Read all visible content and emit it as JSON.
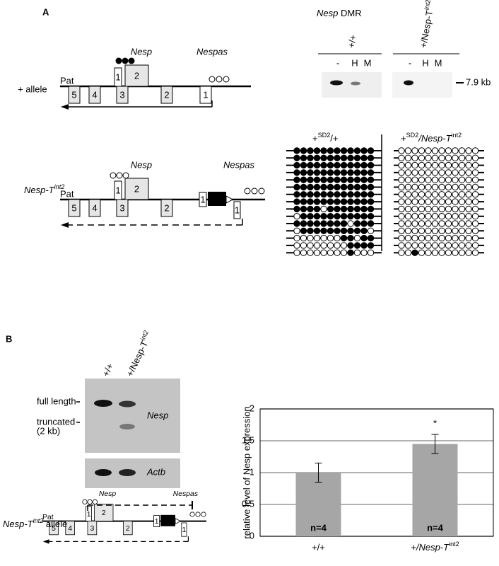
{
  "panel_labels": [
    "A",
    "B"
  ],
  "dmr_assay": {
    "gene": "Nesp",
    "suffix": "DMR",
    "genotypes": [
      "+/+",
      "+/Nesp-T"
    ],
    "genotype_superscripts": [
      null,
      "int2"
    ],
    "lanes": [
      "-",
      "H",
      "M",
      "-",
      "H",
      "M"
    ],
    "size_marker": "7.9 kb"
  },
  "plus_allele": {
    "label": "+ allele",
    "parent": "Pat",
    "genes": [
      "Nesp",
      "Nespas"
    ],
    "exons": [
      "1",
      "2",
      "5",
      "4",
      "3",
      "2",
      "1"
    ]
  },
  "mutant_allele": {
    "label": "Nesp-T",
    "label_superscript": "int2",
    "parent": "Pat",
    "genes": [
      "Nesp",
      "Nespas"
    ],
    "polya": "pA",
    "exons": [
      "1",
      "2",
      "5",
      "4",
      "3",
      "2",
      "1",
      "1"
    ]
  },
  "bisulfite": [
    {
      "title": [
        "+",
        "SD2",
        "/+"
      ],
      "methylation": [
        [
          1,
          1,
          1,
          1,
          1,
          1,
          1,
          1,
          1,
          1,
          1,
          1
        ],
        [
          1,
          1,
          1,
          1,
          1,
          1,
          1,
          1,
          1,
          1,
          1,
          1
        ],
        [
          1,
          1,
          1,
          1,
          1,
          1,
          1,
          1,
          1,
          1,
          1,
          1
        ],
        [
          1,
          1,
          1,
          1,
          1,
          1,
          1,
          1,
          1,
          1,
          1,
          1
        ],
        [
          1,
          1,
          1,
          1,
          1,
          1,
          1,
          1,
          1,
          1,
          1,
          1
        ],
        [
          1,
          1,
          1,
          1,
          1,
          1,
          1,
          1,
          1,
          1,
          1,
          1
        ],
        [
          1,
          1,
          1,
          1,
          1,
          1,
          1,
          1,
          1,
          1,
          1,
          1
        ],
        [
          1,
          1,
          1,
          1,
          1,
          1,
          1,
          1,
          1,
          1,
          1,
          1
        ],
        [
          1,
          1,
          1,
          1,
          0,
          1,
          1,
          1,
          1,
          1,
          1,
          1
        ],
        [
          0,
          1,
          1,
          1,
          1,
          1,
          1,
          1,
          1,
          1,
          1,
          1
        ],
        [
          1,
          1,
          1,
          1,
          1,
          1,
          1,
          1,
          0,
          1,
          1,
          1
        ],
        [
          0,
          1,
          1,
          1,
          1,
          1,
          1,
          1,
          1,
          1,
          1,
          0
        ],
        [
          0,
          0,
          0,
          0,
          0,
          0,
          0,
          1,
          1,
          0,
          1,
          1
        ],
        [
          0,
          0,
          0,
          0,
          0,
          0,
          0,
          0,
          1,
          1,
          1,
          1
        ],
        [
          0,
          0,
          0,
          0,
          0,
          0,
          0,
          0,
          1,
          0,
          0,
          0
        ]
      ]
    },
    {
      "title": [
        "+",
        "SD2",
        "/Nesp-T",
        "int2"
      ],
      "methylation": [
        [
          0,
          0,
          0,
          0,
          0,
          0,
          0,
          0,
          0,
          0,
          0,
          0
        ],
        [
          0,
          0,
          0,
          0,
          0,
          0,
          0,
          0,
          0,
          0,
          0,
          0
        ],
        [
          0,
          0,
          0,
          0,
          0,
          0,
          0,
          0,
          0,
          0,
          0,
          0
        ],
        [
          0,
          0,
          0,
          0,
          0,
          0,
          0,
          0,
          0,
          0,
          0,
          0
        ],
        [
          0,
          0,
          0,
          0,
          0,
          0,
          0,
          0,
          0,
          0,
          0,
          0
        ],
        [
          0,
          0,
          0,
          0,
          0,
          0,
          0,
          0,
          0,
          0,
          0,
          0
        ],
        [
          0,
          0,
          0,
          0,
          0,
          0,
          0,
          0,
          0,
          0,
          0,
          0
        ],
        [
          0,
          0,
          0,
          0,
          0,
          0,
          0,
          0,
          0,
          0,
          0,
          0
        ],
        [
          0,
          0,
          0,
          0,
          0,
          0,
          0,
          0,
          0,
          0,
          0,
          0
        ],
        [
          0,
          0,
          0,
          0,
          0,
          0,
          0,
          0,
          0,
          0,
          0,
          0
        ],
        [
          0,
          0,
          0,
          0,
          0,
          0,
          0,
          0,
          0,
          0,
          0,
          0
        ],
        [
          0,
          0,
          0,
          0,
          0,
          0,
          0,
          0,
          0,
          0,
          0,
          0
        ],
        [
          0,
          0,
          0,
          0,
          0,
          0,
          0,
          0,
          0,
          0,
          0,
          0
        ],
        [
          0,
          0,
          0,
          0,
          0,
          0,
          0,
          0,
          0,
          0,
          0,
          0
        ],
        [
          0,
          0,
          1,
          0,
          0,
          0,
          0,
          0,
          0,
          0,
          0,
          0
        ]
      ]
    }
  ],
  "northern": {
    "genotypes": [
      "+/+",
      "+/Nesp-T"
    ],
    "genotype_superscripts": [
      null,
      "int2"
    ],
    "markers": [
      "full length",
      "truncated",
      "(2 kb)"
    ],
    "probes": [
      "Nesp",
      "Actb"
    ]
  },
  "allele_schematic": {
    "label": "Nesp-T",
    "label_superscript": "int2",
    "suffix": "allele",
    "parent": "Pat",
    "genes": [
      "Nesp",
      "Nespas"
    ],
    "polya": "pA",
    "exons": [
      "1",
      "2",
      "5",
      "4",
      "3",
      "2",
      "1",
      "1"
    ]
  },
  "chart_data": {
    "type": "bar",
    "ylabel": "relative level of Nesp expression",
    "categories": [
      "+/+",
      "+/Nesp-T"
    ],
    "category_superscripts": [
      null,
      "int2"
    ],
    "values": [
      1,
      1.45
    ],
    "errors": [
      0.15,
      0.15
    ],
    "bar_labels": [
      "n=4",
      "n=4"
    ],
    "annotations": [
      null,
      "*"
    ],
    "color": "#a6a6a6",
    "ylim": [
      0,
      2
    ],
    "yticks": [
      0,
      0.5,
      1,
      1.5,
      2
    ],
    "grid": true
  }
}
